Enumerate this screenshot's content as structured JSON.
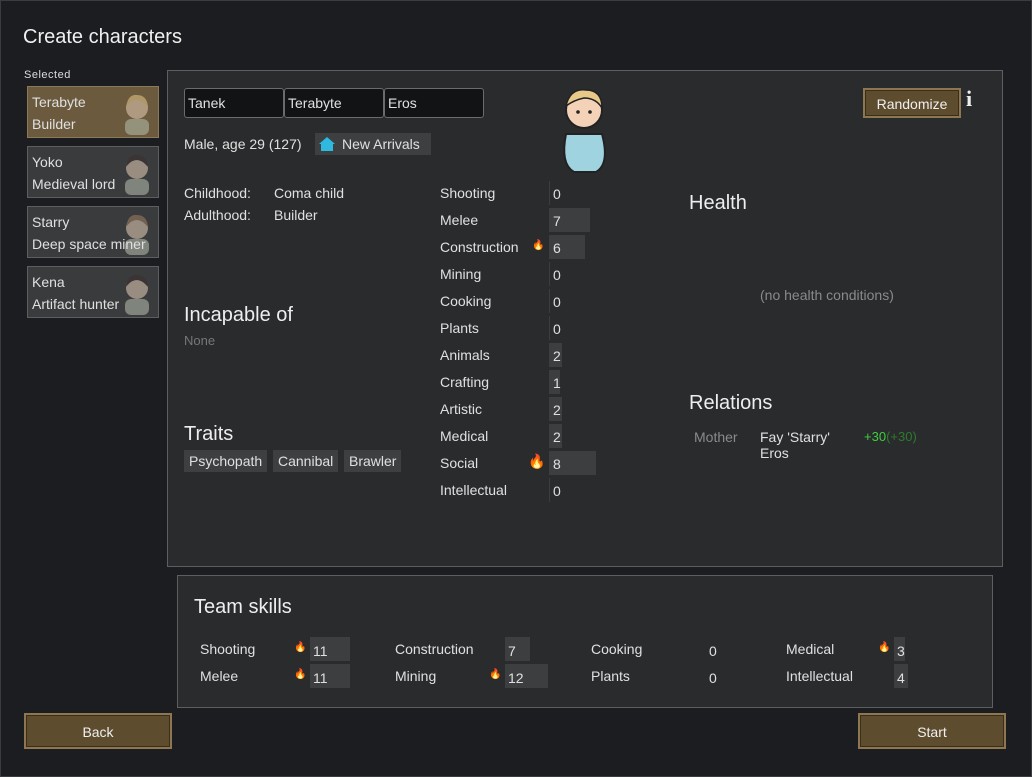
{
  "title": "Create characters",
  "selected_label": "Selected",
  "pawns": [
    {
      "name": "Terabyte",
      "role": "Builder",
      "active": true
    },
    {
      "name": "Yoko",
      "role": "Medieval lord"
    },
    {
      "name": "Starry",
      "role": "Deep space miner"
    },
    {
      "name": "Kena",
      "role": "Artifact hunter"
    }
  ],
  "character": {
    "first": "Tanek",
    "nick": "Terabyte",
    "last": "Eros",
    "summary": "Male, age 29 (127)",
    "faction": "New Arrivals",
    "childhood_label": "Childhood:",
    "childhood": "Coma child",
    "adulthood_label": "Adulthood:",
    "adulthood": "Builder",
    "incapable_title": "Incapable of",
    "incapable": "None",
    "traits_title": "Traits",
    "traits": [
      "Psychopath",
      "Cannibal",
      "Brawler"
    ],
    "randomize": "Randomize",
    "skills": [
      {
        "name": "Shooting",
        "level": "0",
        "passion": 0
      },
      {
        "name": "Melee",
        "level": "7",
        "passion": 0
      },
      {
        "name": "Construction",
        "level": "6",
        "passion": 1
      },
      {
        "name": "Mining",
        "level": "0",
        "passion": 0
      },
      {
        "name": "Cooking",
        "level": "0",
        "passion": 0
      },
      {
        "name": "Plants",
        "level": "0",
        "passion": 0
      },
      {
        "name": "Animals",
        "level": "2",
        "passion": 0
      },
      {
        "name": "Crafting",
        "level": "1",
        "passion": 0
      },
      {
        "name": "Artistic",
        "level": "2",
        "passion": 0
      },
      {
        "name": "Medical",
        "level": "2",
        "passion": 0
      },
      {
        "name": "Social",
        "level": "8",
        "passion": 2
      },
      {
        "name": "Intellectual",
        "level": "0",
        "passion": 0
      }
    ],
    "health_title": "Health",
    "health_empty": "(no health conditions)",
    "relations_title": "Relations",
    "relations": [
      {
        "type": "Mother",
        "name": "Fay 'Starry' Eros",
        "opinion": "+30",
        "opinion_other": "(+30)"
      }
    ]
  },
  "team": {
    "title": "Team skills",
    "skills": [
      {
        "name": "Shooting",
        "level": "11",
        "passion": 1
      },
      {
        "name": "Melee",
        "level": "11",
        "passion": 1
      },
      {
        "name": "Construction",
        "level": "7",
        "passion": 0
      },
      {
        "name": "Mining",
        "level": "12",
        "passion": 1
      },
      {
        "name": "Cooking",
        "level": "0",
        "passion": 0
      },
      {
        "name": "Plants",
        "level": "0",
        "passion": 0
      },
      {
        "name": "Medical",
        "level": "3",
        "passion": 1
      },
      {
        "name": "Intellectual",
        "level": "4",
        "passion": 0
      }
    ]
  },
  "buttons": {
    "back": "Back",
    "start": "Start"
  },
  "colors": {
    "button": "#5e4c2f",
    "positive": "#3ecf3e",
    "faction_icon": "#2fb8e0"
  }
}
